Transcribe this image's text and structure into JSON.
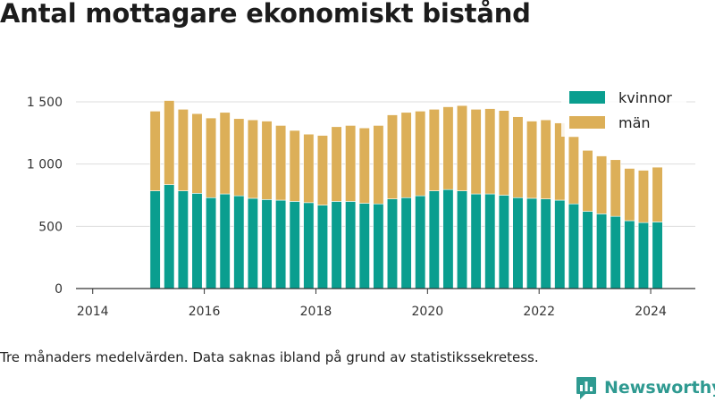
{
  "chart_data": {
    "type": "bar",
    "stacked": true,
    "title": "Antal mottagare ekonomiskt bistånd",
    "xlabel": "",
    "ylabel": "",
    "xlim": [
      2013.7,
      2024.8
    ],
    "ylim": [
      0,
      1600
    ],
    "xticks": [
      2014,
      2016,
      2018,
      2020,
      2022,
      2024
    ],
    "xtick_labels": [
      "2014",
      "2016",
      "2018",
      "2020",
      "2022",
      "2024"
    ],
    "yticks": [
      0,
      500,
      1000,
      1500
    ],
    "ytick_labels": [
      "0",
      "500",
      "1 000",
      "1 500"
    ],
    "grid": "horizontal",
    "legend_position": "top-right",
    "x": [
      2015.12,
      2015.37,
      2015.62,
      2015.87,
      2016.12,
      2016.37,
      2016.62,
      2016.87,
      2017.12,
      2017.37,
      2017.62,
      2017.87,
      2018.12,
      2018.37,
      2018.62,
      2018.87,
      2019.12,
      2019.37,
      2019.62,
      2019.87,
      2020.12,
      2020.37,
      2020.62,
      2020.87,
      2021.12,
      2021.37,
      2021.62,
      2021.87,
      2022.12,
      2022.37,
      2022.62,
      2022.87,
      2023.12,
      2023.37,
      2023.62,
      2023.87,
      2024.12
    ],
    "series": [
      {
        "name": "kvinnor",
        "color": "#0a9e8f",
        "values": [
          785,
          835,
          785,
          765,
          730,
          760,
          745,
          725,
          715,
          710,
          700,
          690,
          670,
          700,
          700,
          685,
          680,
          720,
          730,
          745,
          785,
          795,
          785,
          760,
          760,
          750,
          730,
          725,
          720,
          710,
          680,
          620,
          600,
          580,
          545,
          530,
          535
        ]
      },
      {
        "name": "män",
        "color": "#dcaf58",
        "values": [
          640,
          675,
          655,
          640,
          640,
          655,
          620,
          630,
          630,
          600,
          570,
          550,
          560,
          600,
          610,
          605,
          630,
          675,
          685,
          680,
          655,
          665,
          685,
          680,
          685,
          680,
          650,
          620,
          635,
          620,
          540,
          490,
          465,
          455,
          420,
          420,
          440
        ]
      }
    ],
    "annotations": [
      "Tre månaders medelvärden. Data saknas ibland på grund av statistikssekretess."
    ]
  },
  "brand": {
    "name": "Newsworthy",
    "color": "#2f9a91"
  }
}
